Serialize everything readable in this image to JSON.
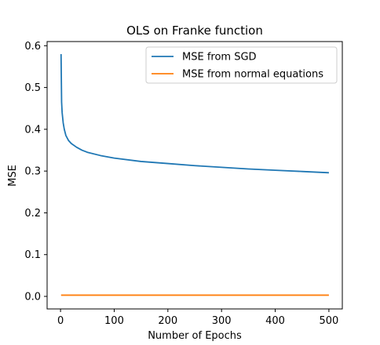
{
  "chart_data": {
    "type": "line",
    "title": "OLS on Franke function",
    "xlabel": "Number of Epochs",
    "ylabel": "MSE",
    "xlim": [
      -25,
      525
    ],
    "ylim": [
      -0.03,
      0.61
    ],
    "xticks": [
      0,
      100,
      200,
      300,
      400,
      500
    ],
    "yticks": [
      0.0,
      0.1,
      0.2,
      0.3,
      0.4,
      0.5,
      0.6
    ],
    "xtick_labels": [
      "0",
      "100",
      "200",
      "300",
      "400",
      "500"
    ],
    "ytick_labels": [
      "0.0",
      "0.1",
      "0.2",
      "0.3",
      "0.4",
      "0.5",
      "0.6"
    ],
    "grid": false,
    "legend_position": "top-right",
    "series": [
      {
        "name": "MSE from SGD",
        "color": "#1f77b4",
        "x": [
          1,
          2,
          3,
          5,
          7,
          10,
          15,
          20,
          30,
          40,
          50,
          75,
          100,
          150,
          200,
          250,
          300,
          350,
          400,
          450,
          500
        ],
        "y": [
          0.58,
          0.465,
          0.44,
          0.415,
          0.4,
          0.385,
          0.373,
          0.366,
          0.357,
          0.35,
          0.345,
          0.337,
          0.331,
          0.323,
          0.318,
          0.313,
          0.309,
          0.305,
          0.302,
          0.299,
          0.296
        ]
      },
      {
        "name": "MSE from normal equations",
        "color": "#ff7f0e",
        "x": [
          1,
          500
        ],
        "y": [
          0.003,
          0.003
        ]
      }
    ]
  }
}
